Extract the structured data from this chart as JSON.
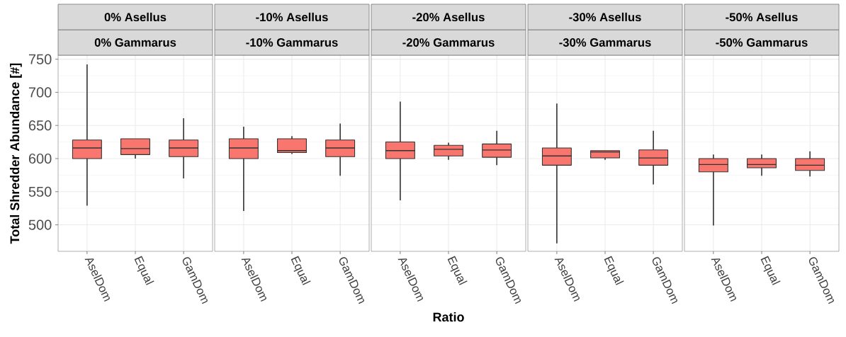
{
  "chart_data": [
    {
      "type": "box",
      "title": "0% Asellus",
      "subtitle": "0% Gammarus",
      "ylabel": "Total Shredder Abundance [#]",
      "categories": [
        "AselDom",
        "Equal",
        "GamDom"
      ],
      "color": "#f8766d",
      "ylim": [
        460,
        756
      ],
      "yticks": [
        500,
        550,
        600,
        650,
        700,
        750
      ],
      "grid": true,
      "boxes": [
        {
          "low": 529,
          "q1": 600,
          "median": 616,
          "q3": 628,
          "high": 742
        },
        {
          "low": 600,
          "q1": 606,
          "median": 615,
          "q3": 630,
          "high": 630
        },
        {
          "low": 570,
          "q1": 603,
          "median": 616,
          "q3": 628,
          "high": 661
        }
      ]
    },
    {
      "type": "box",
      "title": "-10% Asellus",
      "subtitle": "-10% Gammarus",
      "categories": [
        "AselDom",
        "Equal",
        "GamDom"
      ],
      "color": "#f8766d",
      "ylim": [
        460,
        756
      ],
      "yticks": [
        500,
        550,
        600,
        650,
        700,
        750
      ],
      "grid": true,
      "tick_labels": "x",
      "boxes": [
        {
          "low": 521,
          "q1": 600,
          "median": 616,
          "q3": 630,
          "high": 648
        },
        {
          "low": 607,
          "q1": 609,
          "median": 612,
          "q3": 630,
          "high": 634
        },
        {
          "low": 574,
          "q1": 603,
          "median": 616,
          "q3": 628,
          "high": 653
        }
      ]
    },
    {
      "type": "box",
      "title": "-20% Asellus",
      "subtitle": "-20% Gammarus",
      "xlabel": "Ratio",
      "categories": [
        "AselDom",
        "Equal",
        "GamDom"
      ],
      "color": "#f8766d",
      "ylim": [
        460,
        756
      ],
      "yticks": [
        500,
        550,
        600,
        650,
        700,
        750
      ],
      "grid": true,
      "tick_labels": "x",
      "boxes": [
        {
          "low": 537,
          "q1": 600,
          "median": 612,
          "q3": 625,
          "high": 686
        },
        {
          "low": 598,
          "q1": 604,
          "median": 614,
          "q3": 620,
          "high": 624
        },
        {
          "low": 590,
          "q1": 602,
          "median": 613,
          "q3": 622,
          "high": 642
        }
      ]
    },
    {
      "type": "box",
      "title": "-30% Asellus",
      "subtitle": "-30% Gammarus",
      "categories": [
        "AselDom",
        "Equal",
        "GamDom"
      ],
      "color": "#f8766d",
      "ylim": [
        460,
        756
      ],
      "yticks": [
        500,
        550,
        600,
        650,
        700,
        750
      ],
      "grid": true,
      "tick_labels": "x",
      "boxes": [
        {
          "low": 472,
          "q1": 590,
          "median": 604,
          "q3": 616,
          "high": 683
        },
        {
          "low": 598,
          "q1": 601,
          "median": 610,
          "q3": 612,
          "high": 612
        },
        {
          "low": 561,
          "q1": 590,
          "median": 601,
          "q3": 613,
          "high": 642
        }
      ]
    },
    {
      "type": "box",
      "title": "-50% Asellus",
      "subtitle": "-50% Gammarus",
      "categories": [
        "AselDom",
        "Equal",
        "GamDom"
      ],
      "color": "#f8766d",
      "ylim": [
        460,
        756
      ],
      "yticks": [
        500,
        550,
        600,
        650,
        700,
        750
      ],
      "grid": true,
      "tick_labels": "x",
      "boxes": [
        {
          "low": 499,
          "q1": 580,
          "median": 591,
          "q3": 600,
          "high": 606
        },
        {
          "low": 574,
          "q1": 586,
          "median": 591,
          "q3": 600,
          "high": 606
        },
        {
          "low": 573,
          "q1": 582,
          "median": 590,
          "q3": 600,
          "high": 611
        }
      ]
    }
  ]
}
